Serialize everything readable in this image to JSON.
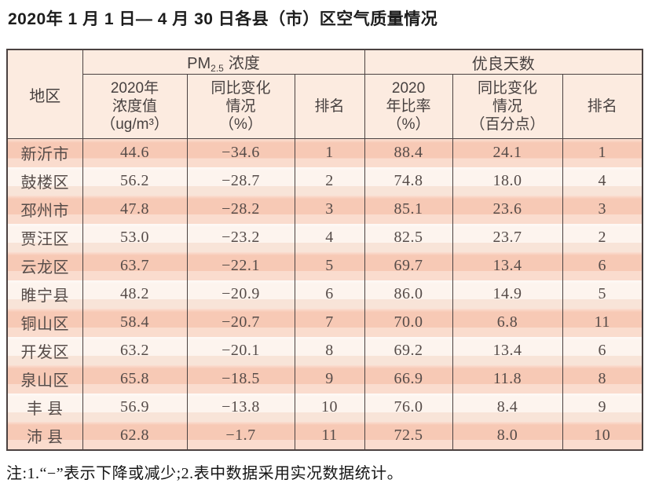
{
  "page": {
    "title": "2020年 1 月 1 日— 4 月 30 日各县（市）区空气质量情况",
    "note": "注:1.“−”表示下降或减少;2.表中数据采用实况数据统计。"
  },
  "colors": {
    "row_odd": "#f7c9b5",
    "row_even": "#fdf4ee",
    "header_bg": "#fcebe0",
    "border": "#4b4241",
    "body_text": "#564c49"
  },
  "chart_data": {
    "type": "table",
    "title": "2020年1月1日—4月30日各县（市）区空气质量情况",
    "header": {
      "region": "地区",
      "group_pm": {
        "prefix": "PM",
        "sub": "2.5",
        "suffix": "浓度"
      },
      "group_good": "优良天数",
      "sub_columns": [
        {
          "lines": [
            "2020年",
            "浓度值",
            "（ug/m³）"
          ]
        },
        {
          "lines": [
            "同比变化",
            "情况",
            "（%）"
          ]
        },
        {
          "lines": [
            "排名"
          ]
        },
        {
          "lines": [
            "2020",
            "年比率",
            "（%）"
          ]
        },
        {
          "lines": [
            "同比变化",
            "情况",
            "（百分点）"
          ]
        },
        {
          "lines": [
            "排名"
          ]
        }
      ]
    },
    "rows": [
      {
        "region": "新沂市",
        "values": [
          "44.6",
          "−34.6",
          "1",
          "88.4",
          "24.1",
          "1"
        ]
      },
      {
        "region": "鼓楼区",
        "values": [
          "56.2",
          "−28.7",
          "2",
          "74.8",
          "18.0",
          "4"
        ]
      },
      {
        "region": "邳州市",
        "values": [
          "47.8",
          "−28.2",
          "3",
          "85.1",
          "23.6",
          "3"
        ]
      },
      {
        "region": "贾汪区",
        "values": [
          "53.0",
          "−23.2",
          "4",
          "82.5",
          "23.7",
          "2"
        ]
      },
      {
        "region": "云龙区",
        "values": [
          "63.7",
          "−22.1",
          "5",
          "69.7",
          "13.4",
          "6"
        ]
      },
      {
        "region": "睢宁县",
        "values": [
          "48.2",
          "−20.9",
          "6",
          "86.0",
          "14.9",
          "5"
        ]
      },
      {
        "region": "铜山区",
        "values": [
          "58.4",
          "−20.7",
          "7",
          "70.0",
          "6.8",
          "11"
        ]
      },
      {
        "region": "开发区",
        "values": [
          "63.2",
          "−20.1",
          "8",
          "69.2",
          "13.4",
          "6"
        ]
      },
      {
        "region": "泉山区",
        "values": [
          "65.8",
          "−18.5",
          "9",
          "66.9",
          "11.8",
          "8"
        ]
      },
      {
        "region": "丰 县",
        "values": [
          "56.9",
          "−13.8",
          "10",
          "76.0",
          "8.4",
          "9"
        ]
      },
      {
        "region": "沛 县",
        "values": [
          "62.8",
          "−1.7",
          "11",
          "72.5",
          "8.0",
          "10"
        ]
      }
    ]
  }
}
